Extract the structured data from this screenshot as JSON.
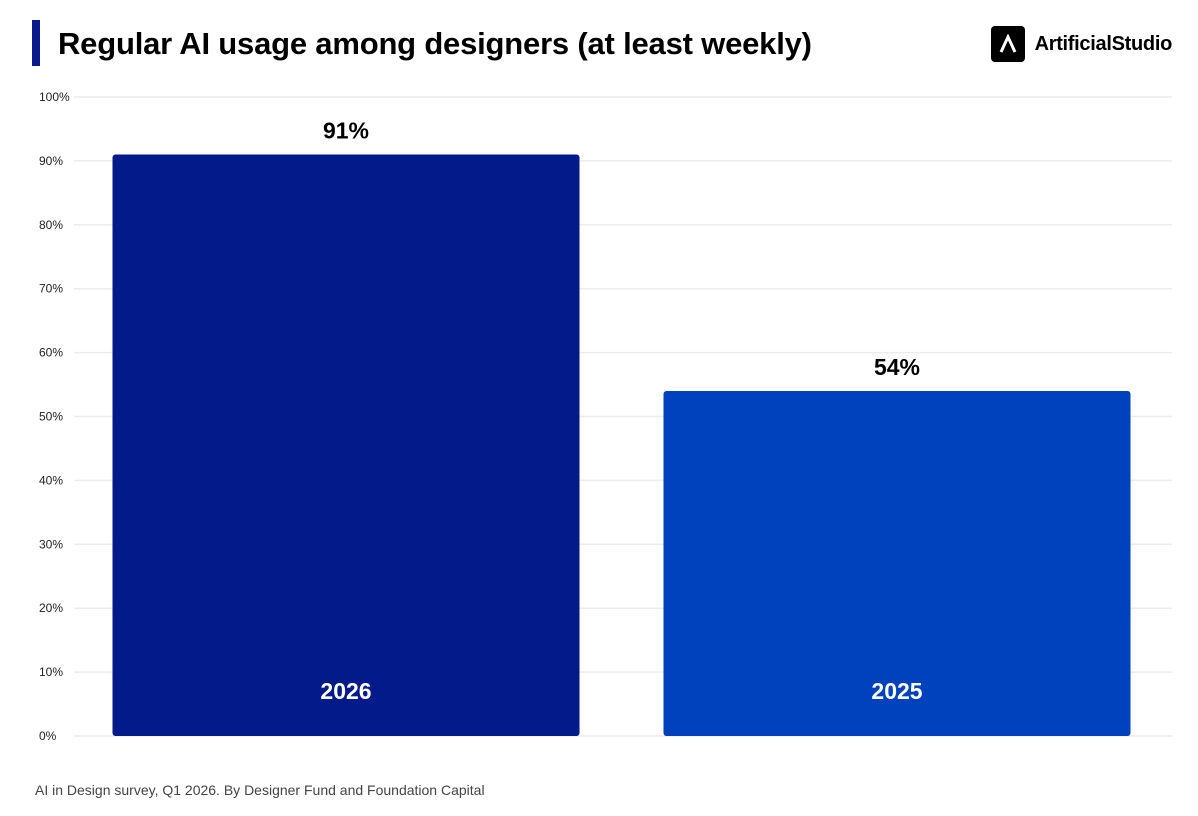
{
  "header": {
    "title": "Regular AI usage among designers (at least weekly)",
    "brand_name": "ArtificialStudio",
    "brand_icon": "caret-up-icon",
    "accent_color": "#0A1A8C"
  },
  "chart_data": {
    "type": "bar",
    "title": "Regular AI usage among designers (at least weekly)",
    "categories": [
      "2026",
      "2025"
    ],
    "values": [
      91,
      54
    ],
    "value_labels": [
      "91%",
      "54%"
    ],
    "colors": [
      "#031B8A",
      "#0042BE"
    ],
    "ylim": [
      0,
      100
    ],
    "yticks": [
      "0%",
      "10%",
      "20%",
      "30%",
      "40%",
      "50%",
      "60%",
      "70%",
      "80%",
      "90%",
      "100%"
    ],
    "grid": true,
    "legend": "none"
  },
  "footer": {
    "source": "AI in Design survey, Q1 2026. By Designer Fund and Foundation Capital"
  }
}
